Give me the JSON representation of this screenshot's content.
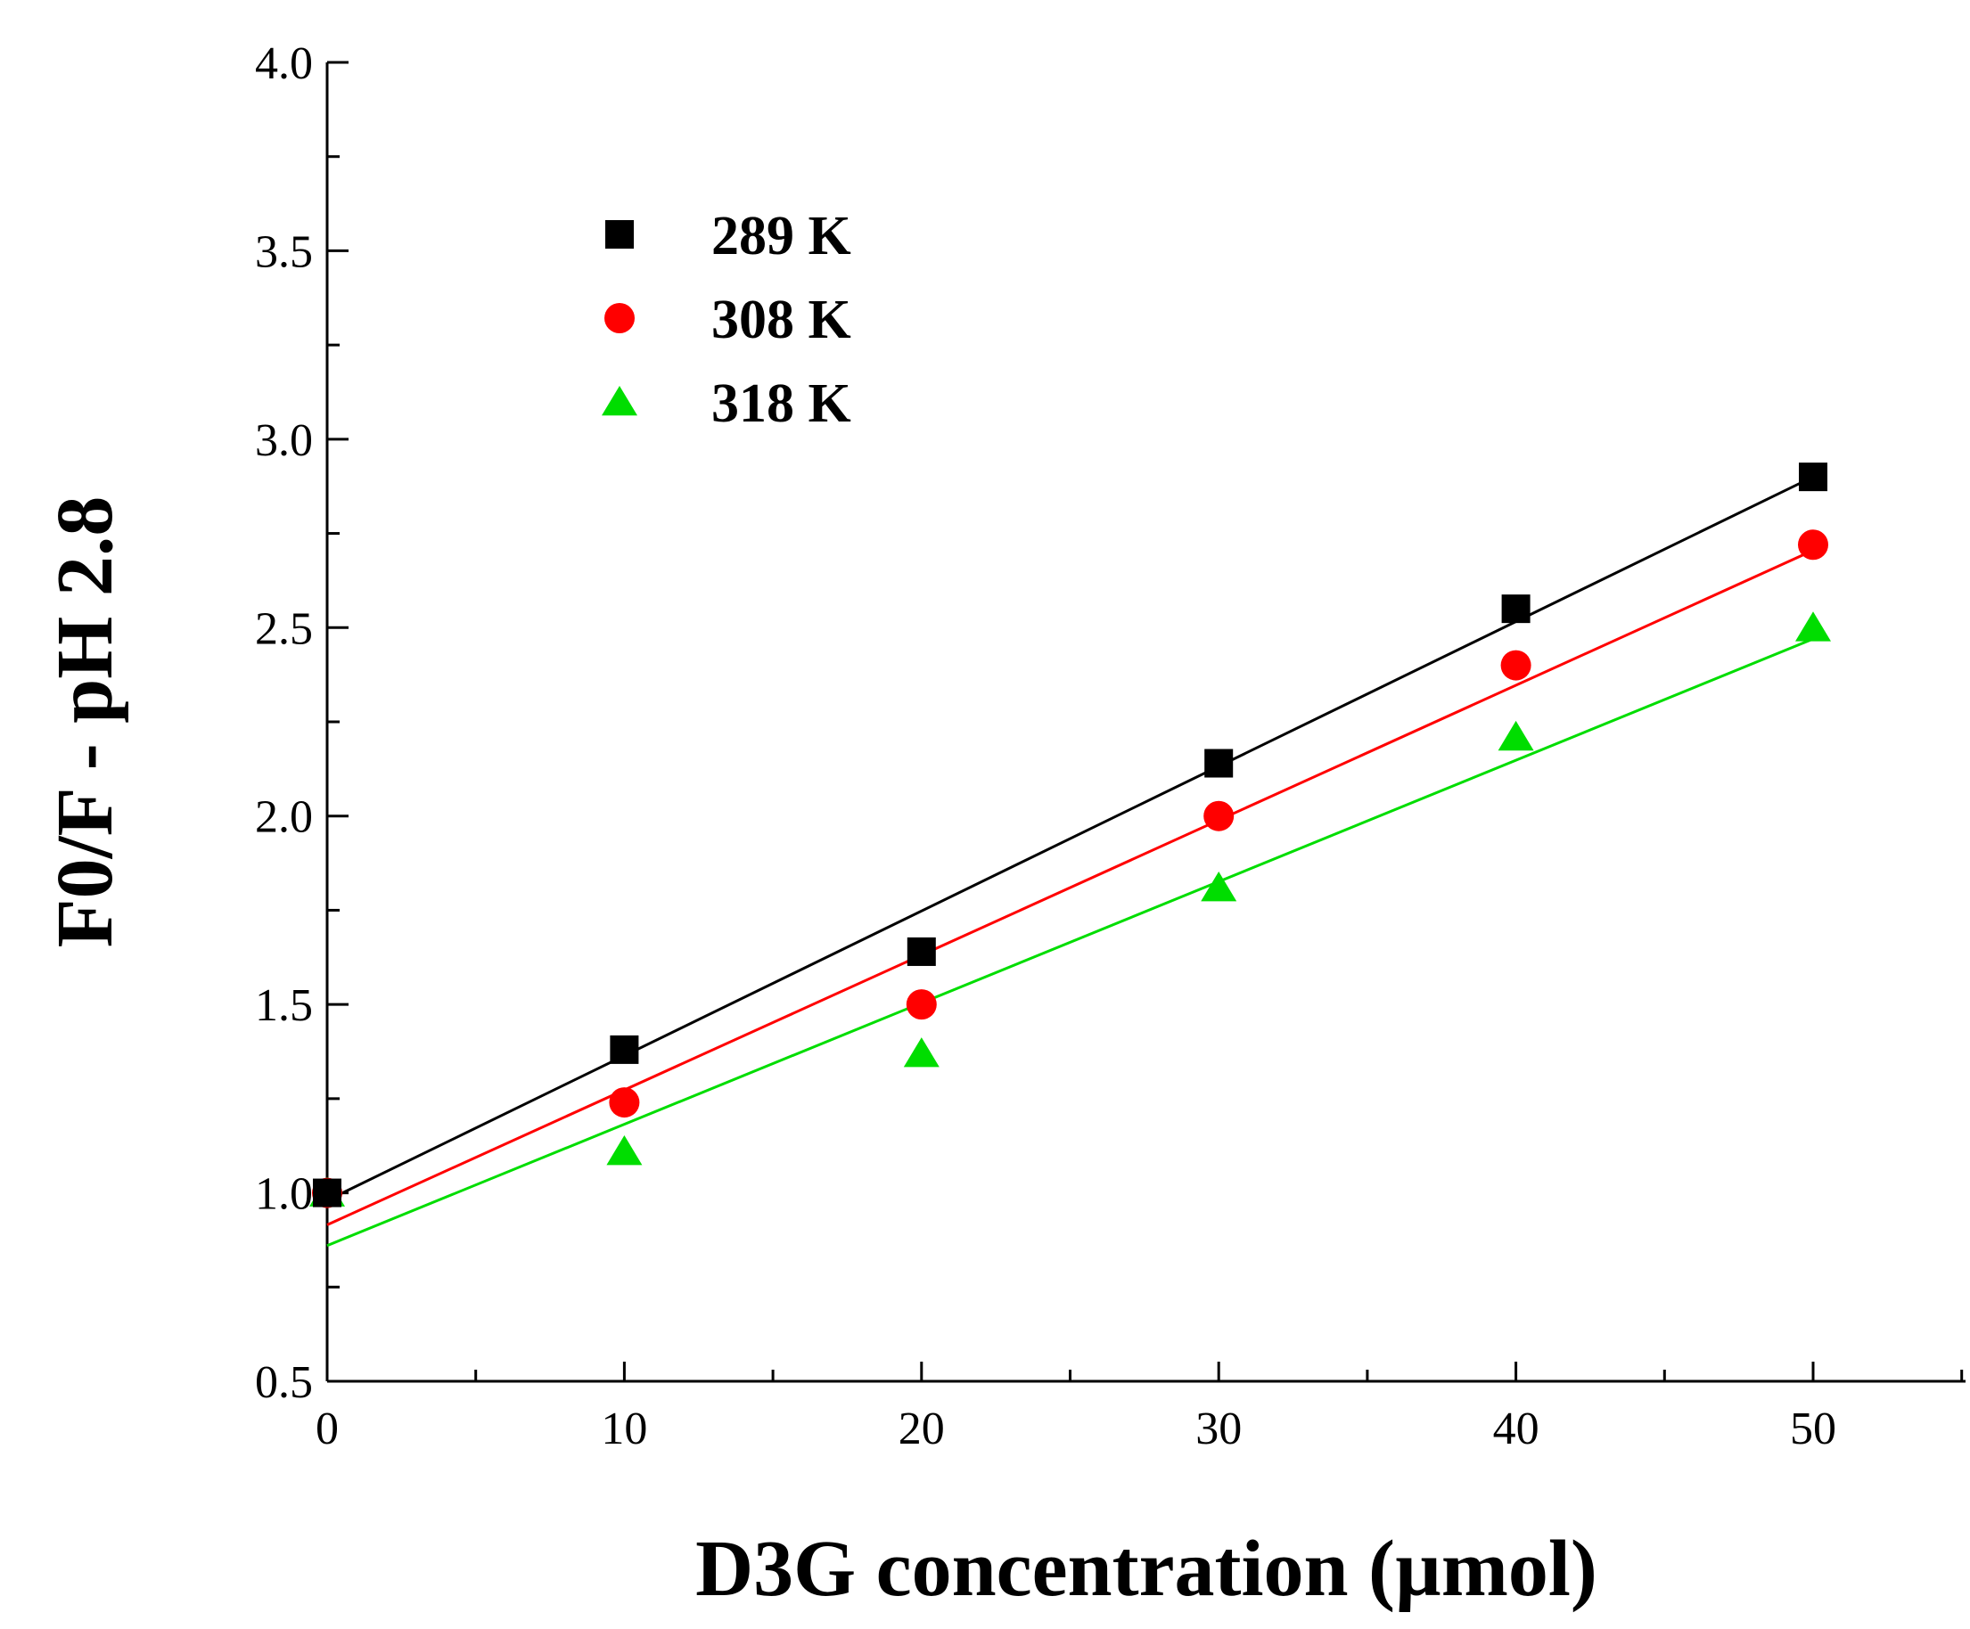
{
  "chart_data": {
    "type": "scatter",
    "title": "",
    "xlabel": "D3G concentration (µmol)",
    "ylabel": "F0/F - pH 2.8",
    "xlim": [
      0,
      55
    ],
    "ylim": [
      0.5,
      4.0
    ],
    "x_ticks": [
      "0",
      "10",
      "20",
      "30",
      "40",
      "50"
    ],
    "y_ticks": [
      "0.5",
      "1.0",
      "1.5",
      "2.0",
      "2.5",
      "3.0",
      "3.5",
      "4.0"
    ],
    "legend_position": "top-left",
    "series": [
      {
        "name": "289 K",
        "marker": "square",
        "color": "#000000",
        "x": [
          0,
          10,
          20,
          30,
          40,
          50
        ],
        "y": [
          1.0,
          1.38,
          1.64,
          2.14,
          2.55,
          2.9
        ],
        "fit": {
          "intercept": 0.98,
          "slope": 0.0384
        }
      },
      {
        "name": "308 K",
        "marker": "circle",
        "color": "#ff0000",
        "x": [
          0,
          10,
          20,
          30,
          40,
          50
        ],
        "y": [
          1.0,
          1.24,
          1.5,
          2.0,
          2.4,
          2.72
        ],
        "fit": {
          "intercept": 0.915,
          "slope": 0.0358
        }
      },
      {
        "name": "318 K",
        "marker": "triangle",
        "color": "#00dd00",
        "x": [
          0,
          10,
          20,
          30,
          40,
          50
        ],
        "y": [
          1.0,
          1.11,
          1.37,
          1.81,
          2.21,
          2.5
        ],
        "fit": {
          "intercept": 0.86,
          "slope": 0.0322
        }
      }
    ]
  }
}
